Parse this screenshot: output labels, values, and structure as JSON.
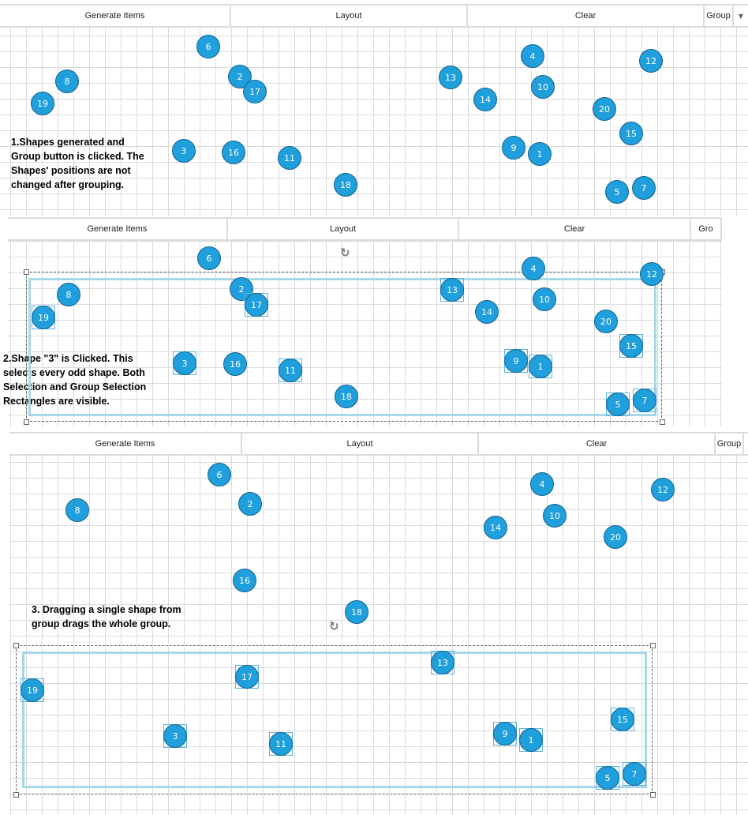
{
  "panels": [
    {
      "toolbar": {
        "generate": "Generate Items",
        "layout": "Layout",
        "clear": "Clear",
        "group": "Group",
        "dropdown_icon": "chevron-down-icon"
      },
      "note": "1.Shapes generated and\nGroup button is clicked. The\nShapes' positions are not\nchanged after grouping.",
      "shapes": [
        {
          "label": "6",
          "selected": false
        },
        {
          "label": "2",
          "selected": false
        },
        {
          "label": "17",
          "selected": false
        },
        {
          "label": "8",
          "selected": false
        },
        {
          "label": "19",
          "selected": false
        },
        {
          "label": "13",
          "selected": false
        },
        {
          "label": "4",
          "selected": false
        },
        {
          "label": "12",
          "selected": false
        },
        {
          "label": "10",
          "selected": false
        },
        {
          "label": "14",
          "selected": false
        },
        {
          "label": "20",
          "selected": false
        },
        {
          "label": "15",
          "selected": false
        },
        {
          "label": "3",
          "selected": false
        },
        {
          "label": "16",
          "selected": false
        },
        {
          "label": "11",
          "selected": false
        },
        {
          "label": "9",
          "selected": false
        },
        {
          "label": "1",
          "selected": false
        },
        {
          "label": "18",
          "selected": false
        },
        {
          "label": "5",
          "selected": false
        },
        {
          "label": "7",
          "selected": false
        }
      ]
    },
    {
      "toolbar": {
        "generate": "Generate Items",
        "layout": "Layout",
        "clear": "Clear",
        "group": "Gro"
      },
      "note": "2.Shape \"3\" is Clicked. This\nselects every odd shape. Both\nSelection and Group Selection\nRectangles are visible.",
      "shapes": [
        {
          "label": "6",
          "selected": false
        },
        {
          "label": "2",
          "selected": false
        },
        {
          "label": "17",
          "selected": true
        },
        {
          "label": "8",
          "selected": false
        },
        {
          "label": "19",
          "selected": true
        },
        {
          "label": "13",
          "selected": true
        },
        {
          "label": "4",
          "selected": false
        },
        {
          "label": "12",
          "selected": false
        },
        {
          "label": "10",
          "selected": false
        },
        {
          "label": "14",
          "selected": false
        },
        {
          "label": "20",
          "selected": false
        },
        {
          "label": "15",
          "selected": true
        },
        {
          "label": "3",
          "selected": true
        },
        {
          "label": "16",
          "selected": false
        },
        {
          "label": "11",
          "selected": true
        },
        {
          "label": "9",
          "selected": true
        },
        {
          "label": "1",
          "selected": true
        },
        {
          "label": "18",
          "selected": false
        },
        {
          "label": "5",
          "selected": true
        },
        {
          "label": "7",
          "selected": true
        }
      ]
    },
    {
      "toolbar": {
        "generate": "Generate Items",
        "layout": "Layout",
        "clear": "Clear",
        "group": "Group"
      },
      "note": "3. Dragging a single shape from\ngroup drags the whole group.",
      "shapes": [
        {
          "label": "6",
          "selected": false
        },
        {
          "label": "2",
          "selected": false
        },
        {
          "label": "17",
          "selected": true
        },
        {
          "label": "8",
          "selected": false
        },
        {
          "label": "19",
          "selected": true
        },
        {
          "label": "13",
          "selected": true
        },
        {
          "label": "4",
          "selected": false
        },
        {
          "label": "12",
          "selected": false
        },
        {
          "label": "10",
          "selected": false
        },
        {
          "label": "14",
          "selected": false
        },
        {
          "label": "20",
          "selected": false
        },
        {
          "label": "15",
          "selected": true
        },
        {
          "label": "3",
          "selected": true
        },
        {
          "label": "16",
          "selected": false
        },
        {
          "label": "11",
          "selected": true
        },
        {
          "label": "9",
          "selected": true
        },
        {
          "label": "1",
          "selected": true
        },
        {
          "label": "18",
          "selected": false
        },
        {
          "label": "5",
          "selected": true
        },
        {
          "label": "7",
          "selected": true
        }
      ]
    }
  ],
  "colors": {
    "shape_fill": "#1f9fdb",
    "shape_border": "#17628f",
    "group_rect": "#a8d8e8",
    "selection_box": "#5ab6e6"
  },
  "icons": {
    "rotate": "rotate-icon"
  }
}
